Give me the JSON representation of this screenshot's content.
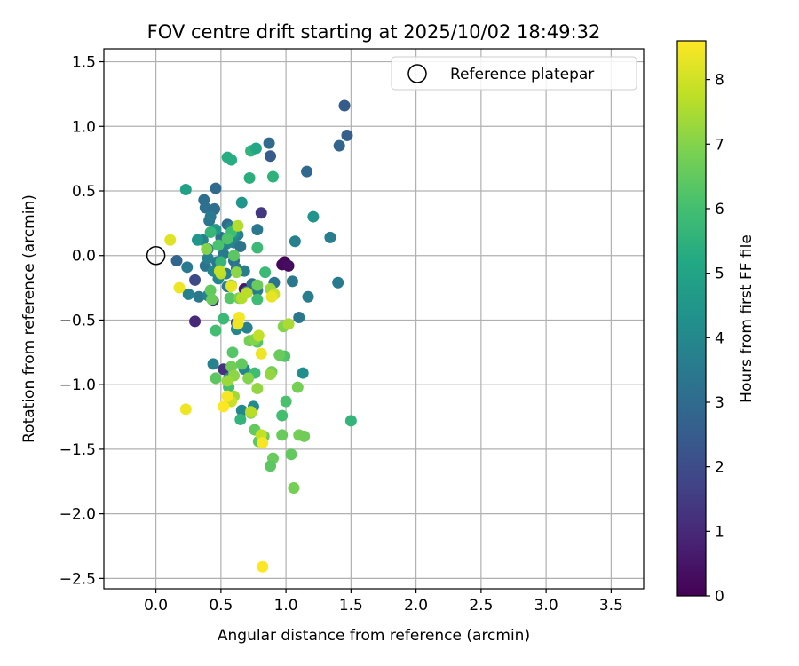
{
  "chart_data": {
    "type": "scatter",
    "title": "FOV centre drift starting at 2025/10/02 18:49:32",
    "xlabel": "Angular distance from reference (arcmin)",
    "ylabel": "Rotation from reference (arcmin)",
    "xlim": [
      -0.4,
      3.75
    ],
    "ylim": [
      -2.58,
      1.6
    ],
    "xticks": [
      0.0,
      0.5,
      1.0,
      1.5,
      2.0,
      2.5,
      3.0,
      3.5
    ],
    "xtick_labels": [
      "0.0",
      "0.5",
      "1.0",
      "1.5",
      "2.0",
      "2.5",
      "3.0",
      "3.5"
    ],
    "yticks": [
      -2.5,
      -2.0,
      -1.5,
      -1.0,
      -0.5,
      0.0,
      0.5,
      1.0,
      1.5
    ],
    "ytick_labels": [
      "−2.5",
      "−2.0",
      "−1.5",
      "−1.0",
      "−0.5",
      "0.0",
      "0.5",
      "1.0",
      "1.5"
    ],
    "grid": true,
    "legend": {
      "position": "upper-right",
      "label": "Reference platepar"
    },
    "reference_point": {
      "x": 0.0,
      "y": 0.0
    },
    "colorbar": {
      "label": "Hours from first FF file",
      "range": [
        0,
        8.6
      ],
      "ticks": [
        0,
        1,
        2,
        3,
        4,
        5,
        6,
        7,
        8
      ],
      "tick_labels": [
        "0",
        "1",
        "2",
        "3",
        "4",
        "5",
        "6",
        "7",
        "8"
      ],
      "colormap": "viridis"
    },
    "points": [
      {
        "x": 0.99,
        "y": -0.05,
        "h": 0.1
      },
      {
        "x": 0.97,
        "y": -0.07,
        "h": 0.2
      },
      {
        "x": 1.02,
        "y": -0.08,
        "h": 0.3
      },
      {
        "x": 0.68,
        "y": -0.26,
        "h": 0.6
      },
      {
        "x": 0.3,
        "y": -0.51,
        "h": 1.0
      },
      {
        "x": 0.52,
        "y": -0.88,
        "h": 1.2
      },
      {
        "x": 0.44,
        "y": -0.35,
        "h": 1.3
      },
      {
        "x": 0.81,
        "y": 0.33,
        "h": 1.4
      },
      {
        "x": 0.62,
        "y": -0.52,
        "h": 1.6
      },
      {
        "x": 0.3,
        "y": -0.19,
        "h": 1.9
      },
      {
        "x": 0.88,
        "y": 0.77,
        "h": 2.5
      },
      {
        "x": 1.45,
        "y": 1.16,
        "h": 2.5
      },
      {
        "x": 1.47,
        "y": 0.93,
        "h": 2.6
      },
      {
        "x": 1.41,
        "y": 0.85,
        "h": 2.8
      },
      {
        "x": 0.16,
        "y": -0.04,
        "h": 2.8
      },
      {
        "x": 1.16,
        "y": 0.65,
        "h": 2.9
      },
      {
        "x": 0.87,
        "y": 0.87,
        "h": 3.0
      },
      {
        "x": 0.46,
        "y": 0.52,
        "h": 3.0
      },
      {
        "x": 0.37,
        "y": 0.43,
        "h": 3.1
      },
      {
        "x": 0.38,
        "y": 0.37,
        "h": 3.2
      },
      {
        "x": 0.45,
        "y": 0.36,
        "h": 3.1
      },
      {
        "x": 0.55,
        "y": 0.24,
        "h": 3.0
      },
      {
        "x": 0.41,
        "y": 0.27,
        "h": 3.4
      },
      {
        "x": 0.42,
        "y": 0.3,
        "h": 3.5
      },
      {
        "x": 0.58,
        "y": 0.22,
        "h": 3.6
      },
      {
        "x": 0.63,
        "y": 0.16,
        "h": 3.6
      },
      {
        "x": 0.78,
        "y": 0.2,
        "h": 3.4
      },
      {
        "x": 0.5,
        "y": 0.14,
        "h": 3.2
      },
      {
        "x": 0.54,
        "y": 0.09,
        "h": 3.8
      },
      {
        "x": 0.6,
        "y": 0.1,
        "h": 3.9
      },
      {
        "x": 0.65,
        "y": 0.07,
        "h": 3.3
      },
      {
        "x": 0.4,
        "y": 0.05,
        "h": 3.6
      },
      {
        "x": 0.52,
        "y": 0.01,
        "h": 3.5
      },
      {
        "x": 0.36,
        "y": 0.12,
        "h": 3.8
      },
      {
        "x": 0.47,
        "y": -0.05,
        "h": 3.4
      },
      {
        "x": 0.38,
        "y": -0.08,
        "h": 3.3
      },
      {
        "x": 0.4,
        "y": -0.02,
        "h": 3.7
      },
      {
        "x": 0.44,
        "y": -0.12,
        "h": 3.9
      },
      {
        "x": 0.54,
        "y": -0.14,
        "h": 3.6
      },
      {
        "x": 0.6,
        "y": -0.04,
        "h": 3.2
      },
      {
        "x": 0.62,
        "y": -0.1,
        "h": 3.4
      },
      {
        "x": 0.68,
        "y": -0.12,
        "h": 3.6
      },
      {
        "x": 0.24,
        "y": -0.09,
        "h": 3.5
      },
      {
        "x": 0.33,
        "y": -0.32,
        "h": 3.4
      },
      {
        "x": 0.25,
        "y": -0.3,
        "h": 3.7
      },
      {
        "x": 0.4,
        "y": -0.31,
        "h": 3.8
      },
      {
        "x": 0.48,
        "y": -0.18,
        "h": 3.9
      },
      {
        "x": 0.55,
        "y": -0.24,
        "h": 3.5
      },
      {
        "x": 0.7,
        "y": -0.28,
        "h": 3.6
      },
      {
        "x": 0.74,
        "y": -0.22,
        "h": 3.1
      },
      {
        "x": 0.78,
        "y": -0.27,
        "h": 3.5
      },
      {
        "x": 0.91,
        "y": -0.21,
        "h": 3.3
      },
      {
        "x": 1.05,
        "y": -0.2,
        "h": 3.4
      },
      {
        "x": 1.07,
        "y": 0.11,
        "h": 3.7
      },
      {
        "x": 1.34,
        "y": 0.14,
        "h": 3.6
      },
      {
        "x": 1.4,
        "y": -0.21,
        "h": 3.5
      },
      {
        "x": 1.17,
        "y": -0.32,
        "h": 3.6
      },
      {
        "x": 1.1,
        "y": -0.48,
        "h": 3.4
      },
      {
        "x": 0.62,
        "y": -0.57,
        "h": 3.9
      },
      {
        "x": 0.7,
        "y": -0.56,
        "h": 3.7
      },
      {
        "x": 0.44,
        "y": -0.84,
        "h": 3.8
      },
      {
        "x": 0.68,
        "y": -0.88,
        "h": 3.9
      },
      {
        "x": 0.56,
        "y": -0.95,
        "h": 3.7
      },
      {
        "x": 0.66,
        "y": -1.2,
        "h": 4.0
      },
      {
        "x": 0.75,
        "y": -1.17,
        "h": 4.1
      },
      {
        "x": 1.13,
        "y": -0.91,
        "h": 4.2
      },
      {
        "x": 1.21,
        "y": 0.3,
        "h": 4.4
      },
      {
        "x": 0.6,
        "y": 0.17,
        "h": 4.3
      },
      {
        "x": 0.46,
        "y": 0.2,
        "h": 4.6
      },
      {
        "x": 0.32,
        "y": 0.12,
        "h": 4.5
      },
      {
        "x": 0.66,
        "y": 0.41,
        "h": 4.5
      },
      {
        "x": 0.23,
        "y": 0.51,
        "h": 4.9
      },
      {
        "x": 0.55,
        "y": 0.76,
        "h": 5.3
      },
      {
        "x": 0.58,
        "y": 0.74,
        "h": 5.3
      },
      {
        "x": 0.73,
        "y": 0.81,
        "h": 5.6
      },
      {
        "x": 0.77,
        "y": 0.83,
        "h": 5.1
      },
      {
        "x": 0.9,
        "y": 0.61,
        "h": 5.5
      },
      {
        "x": 0.72,
        "y": 0.6,
        "h": 5.4
      },
      {
        "x": 0.42,
        "y": 0.18,
        "h": 5.7
      },
      {
        "x": 0.78,
        "y": 0.06,
        "h": 5.8
      },
      {
        "x": 0.58,
        "y": 0.18,
        "h": 5.9
      },
      {
        "x": 0.48,
        "y": 0.08,
        "h": 6.1
      },
      {
        "x": 0.5,
        "y": -0.05,
        "h": 5.7
      },
      {
        "x": 0.84,
        "y": -0.13,
        "h": 5.8
      },
      {
        "x": 0.78,
        "y": -0.34,
        "h": 5.9
      },
      {
        "x": 0.46,
        "y": -0.58,
        "h": 6.0
      },
      {
        "x": 0.52,
        "y": -0.49,
        "h": 5.8
      },
      {
        "x": 0.76,
        "y": -0.91,
        "h": 5.9
      },
      {
        "x": 0.65,
        "y": -1.27,
        "h": 5.6
      },
      {
        "x": 1.5,
        "y": -1.28,
        "h": 5.6
      },
      {
        "x": 0.97,
        "y": -1.24,
        "h": 6.0
      },
      {
        "x": 1.0,
        "y": -1.13,
        "h": 6.1
      },
      {
        "x": 0.56,
        "y": -1.02,
        "h": 6.0
      },
      {
        "x": 0.99,
        "y": -0.78,
        "h": 6.2
      },
      {
        "x": 0.55,
        "y": 0.13,
        "h": 6.2
      },
      {
        "x": 0.6,
        "y": 0.0,
        "h": 6.4
      },
      {
        "x": 0.57,
        "y": -0.33,
        "h": 6.3
      },
      {
        "x": 0.42,
        "y": -0.27,
        "h": 6.5
      },
      {
        "x": 0.43,
        "y": -0.34,
        "h": 6.6
      },
      {
        "x": 0.64,
        "y": -0.33,
        "h": 6.8
      },
      {
        "x": 0.78,
        "y": -0.23,
        "h": 6.6
      },
      {
        "x": 0.46,
        "y": -0.95,
        "h": 6.4
      },
      {
        "x": 0.59,
        "y": -0.75,
        "h": 6.3
      },
      {
        "x": 0.66,
        "y": -0.84,
        "h": 6.5
      },
      {
        "x": 0.58,
        "y": -0.86,
        "h": 6.7
      },
      {
        "x": 0.72,
        "y": -0.66,
        "h": 6.8
      },
      {
        "x": 0.78,
        "y": -0.67,
        "h": 6.3
      },
      {
        "x": 0.89,
        "y": -0.9,
        "h": 6.7
      },
      {
        "x": 0.95,
        "y": -0.77,
        "h": 6.6
      },
      {
        "x": 0.98,
        "y": -0.55,
        "h": 7.0
      },
      {
        "x": 1.09,
        "y": -1.02,
        "h": 6.8
      },
      {
        "x": 0.73,
        "y": -1.22,
        "h": 6.9
      },
      {
        "x": 0.76,
        "y": -1.35,
        "h": 6.5
      },
      {
        "x": 0.83,
        "y": -1.4,
        "h": 6.6
      },
      {
        "x": 0.79,
        "y": -1.44,
        "h": 6.4
      },
      {
        "x": 0.97,
        "y": -1.39,
        "h": 6.6
      },
      {
        "x": 1.1,
        "y": -1.39,
        "h": 6.8
      },
      {
        "x": 1.14,
        "y": -1.4,
        "h": 6.7
      },
      {
        "x": 1.04,
        "y": -1.54,
        "h": 6.5
      },
      {
        "x": 0.9,
        "y": -1.57,
        "h": 6.6
      },
      {
        "x": 0.88,
        "y": -1.63,
        "h": 6.4
      },
      {
        "x": 1.06,
        "y": -1.8,
        "h": 6.8
      },
      {
        "x": 0.39,
        "y": 0.05,
        "h": 7.0
      },
      {
        "x": 0.58,
        "y": -0.23,
        "h": 7.2
      },
      {
        "x": 0.62,
        "y": -0.13,
        "h": 7.1
      },
      {
        "x": 0.76,
        "y": -0.65,
        "h": 7.0
      },
      {
        "x": 0.88,
        "y": -0.26,
        "h": 7.3
      },
      {
        "x": 0.78,
        "y": -1.03,
        "h": 7.2
      },
      {
        "x": 0.6,
        "y": -0.93,
        "h": 7.1
      },
      {
        "x": 0.71,
        "y": -0.95,
        "h": 7.0
      },
      {
        "x": 0.88,
        "y": -0.92,
        "h": 7.2
      },
      {
        "x": 0.55,
        "y": -0.97,
        "h": 7.3
      },
      {
        "x": 0.6,
        "y": -1.09,
        "h": 7.4
      },
      {
        "x": 1.02,
        "y": -0.53,
        "h": 7.5
      },
      {
        "x": 0.63,
        "y": 0.23,
        "h": 7.6
      },
      {
        "x": 0.5,
        "y": -0.14,
        "h": 7.7
      },
      {
        "x": 0.49,
        "y": -0.12,
        "h": 7.8
      },
      {
        "x": 0.66,
        "y": -0.33,
        "h": 7.6
      },
      {
        "x": 0.7,
        "y": -0.29,
        "h": 7.7
      },
      {
        "x": 0.91,
        "y": -0.3,
        "h": 7.9
      },
      {
        "x": 0.79,
        "y": -0.62,
        "h": 7.8
      },
      {
        "x": 0.73,
        "y": -1.21,
        "h": 7.7
      },
      {
        "x": 0.58,
        "y": -1.13,
        "h": 7.9
      },
      {
        "x": 0.81,
        "y": -1.39,
        "h": 7.8
      },
      {
        "x": 0.11,
        "y": 0.12,
        "h": 8.2
      },
      {
        "x": 0.18,
        "y": -0.25,
        "h": 8.4
      },
      {
        "x": 0.58,
        "y": -0.24,
        "h": 8.3
      },
      {
        "x": 0.64,
        "y": -0.48,
        "h": 8.5
      },
      {
        "x": 0.63,
        "y": -0.53,
        "h": 8.4
      },
      {
        "x": 0.89,
        "y": -0.32,
        "h": 8.3
      },
      {
        "x": 0.81,
        "y": -0.76,
        "h": 8.4
      },
      {
        "x": 0.55,
        "y": -1.09,
        "h": 8.5
      },
      {
        "x": 0.52,
        "y": -1.17,
        "h": 8.6
      },
      {
        "x": 0.23,
        "y": -1.19,
        "h": 8.4
      },
      {
        "x": 0.82,
        "y": -1.45,
        "h": 8.5
      },
      {
        "x": 0.82,
        "y": -2.41,
        "h": 8.6
      }
    ]
  }
}
